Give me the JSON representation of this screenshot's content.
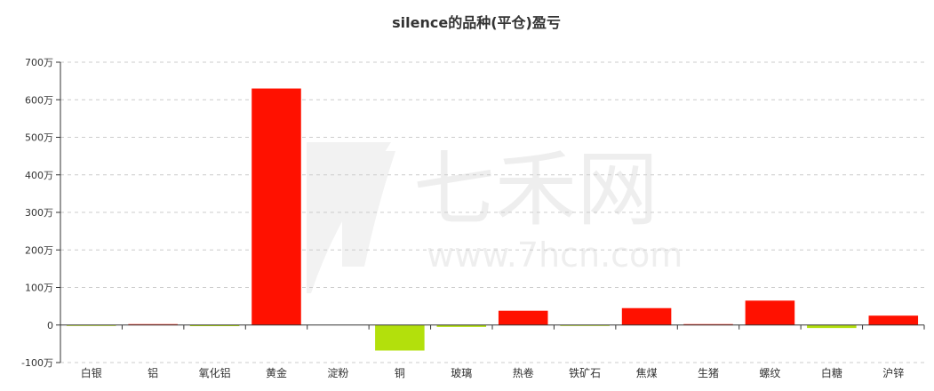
{
  "watermark": {
    "brand_text": "七禾网",
    "url_text": "www.7hcn.com"
  },
  "chart_data": {
    "type": "bar",
    "title": "silence的品种(平仓)盈亏",
    "xlabel": "",
    "ylabel": "",
    "ylim": [
      -100,
      700
    ],
    "y_unit": "万",
    "y_ticks": [
      -100,
      0,
      100,
      200,
      300,
      400,
      500,
      600,
      700
    ],
    "y_tick_labels": [
      "-100万",
      "0",
      "100万",
      "200万",
      "300万",
      "400万",
      "500万",
      "600万",
      "700万"
    ],
    "grid": true,
    "legend": "none",
    "positive_color": "#ff1100",
    "negative_color": "#b3e00c",
    "categories": [
      "白银",
      "铝",
      "氧化铝",
      "黄金",
      "淀粉",
      "铜",
      "玻璃",
      "热卷",
      "铁矿石",
      "焦煤",
      "生猪",
      "螺纹",
      "白糖",
      "沪锌"
    ],
    "values": [
      -1,
      1,
      -3,
      630,
      0,
      -68,
      -5,
      38,
      -1,
      45,
      2,
      65,
      -8,
      25
    ]
  }
}
